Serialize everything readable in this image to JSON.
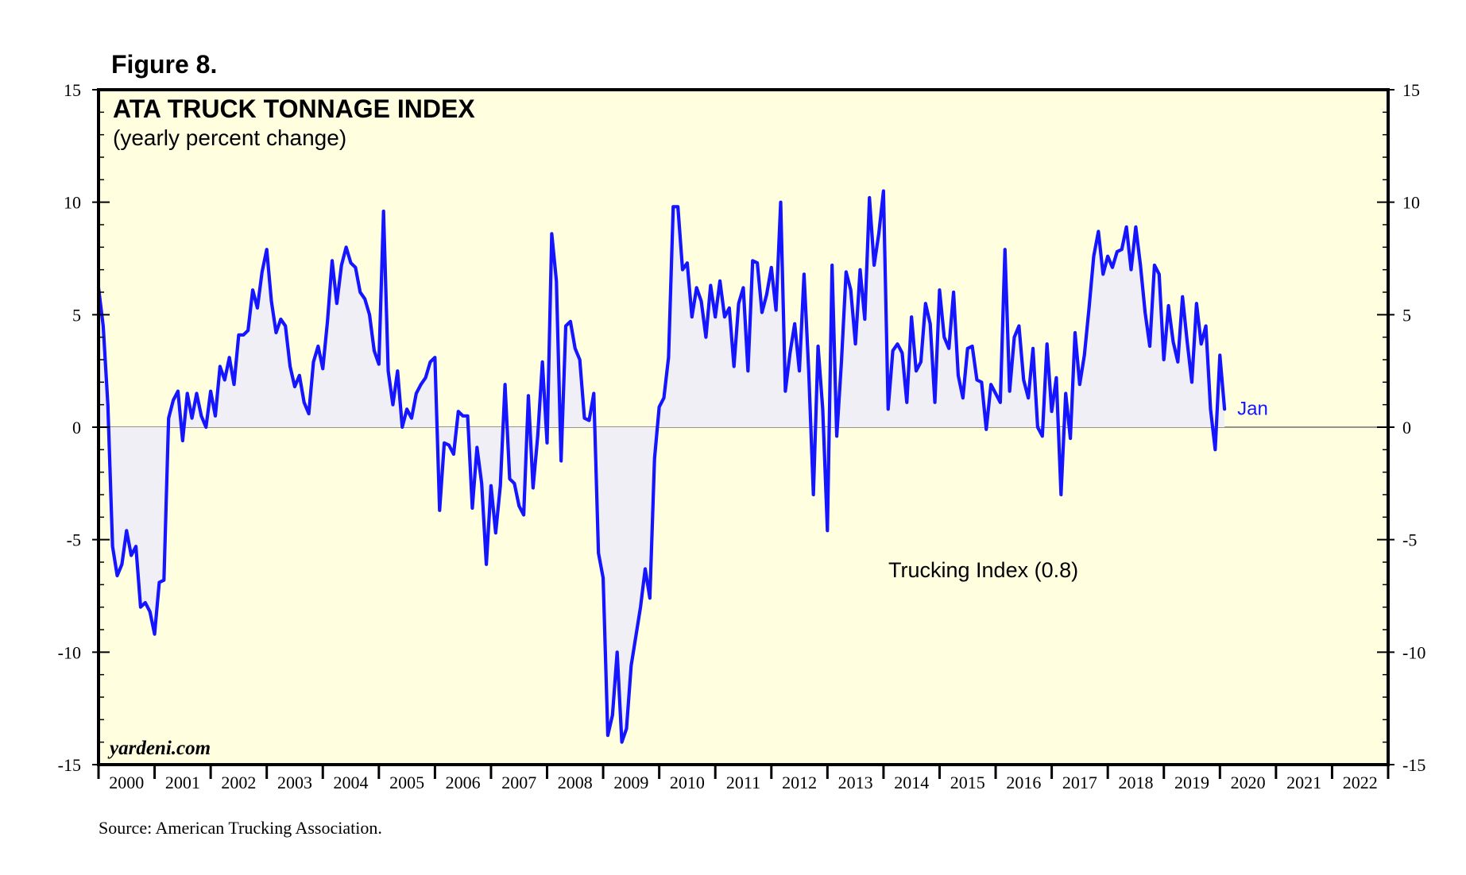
{
  "figure_label": "Figure 8.",
  "source": "Source: American Trucking Association.",
  "watermark": "yardeni.com",
  "colors": {
    "plot_bg": "#ffffe0",
    "line": "#1515ff",
    "fill": "#efeff5",
    "frame": "#000000"
  },
  "chart_data": {
    "type": "line",
    "title": "ATA TRUCK TONNAGE INDEX",
    "subtitle": "(yearly percent change)",
    "series_label": "Trucking Index (0.8)",
    "end_label": "Jan",
    "xlabel": "",
    "ylabel": "",
    "ylim": [
      -15,
      15
    ],
    "y_ticks": [
      "15",
      "10",
      "5",
      "0",
      "-5",
      "-10",
      "-15"
    ],
    "x_start": 2000.0,
    "x_end": 2023.0,
    "x_step": 0.08333,
    "x_tick_labels": [
      "2000",
      "2001",
      "2002",
      "2003",
      "2004",
      "2005",
      "2006",
      "2007",
      "2008",
      "2009",
      "2010",
      "2011",
      "2012",
      "2013",
      "2014",
      "2015",
      "2016",
      "2017",
      "2018",
      "2019",
      "2020",
      "2021",
      "2022"
    ],
    "series": [
      {
        "name": "Trucking Index",
        "values": [
          6.2,
          4.5,
          1.0,
          -5.3,
          -6.6,
          -6.1,
          -4.6,
          -5.7,
          -5.3,
          -8.0,
          -7.8,
          -8.2,
          -9.2,
          -6.9,
          -6.8,
          0.4,
          1.2,
          1.6,
          -0.6,
          1.5,
          0.4,
          1.5,
          0.5,
          0.0,
          1.6,
          0.5,
          2.7,
          2.1,
          3.1,
          1.9,
          4.1,
          4.1,
          4.3,
          6.1,
          5.3,
          6.9,
          7.9,
          5.6,
          4.2,
          4.8,
          4.5,
          2.7,
          1.8,
          2.3,
          1.1,
          0.6,
          2.9,
          3.6,
          2.6,
          4.7,
          7.4,
          5.5,
          7.2,
          8.0,
          7.3,
          7.1,
          6.0,
          5.7,
          5.0,
          3.4,
          2.8,
          9.6,
          2.5,
          1.0,
          2.5,
          0.0,
          0.8,
          0.4,
          1.5,
          1.9,
          2.2,
          2.9,
          3.1,
          -3.7,
          -0.7,
          -0.8,
          -1.2,
          0.7,
          0.5,
          0.5,
          -3.6,
          -0.9,
          -2.5,
          -6.1,
          -2.6,
          -4.7,
          -2.6,
          1.9,
          -2.3,
          -2.5,
          -3.5,
          -3.9,
          1.4,
          -2.7,
          -0.4,
          2.9,
          -0.7,
          8.6,
          6.5,
          -1.5,
          4.5,
          4.7,
          3.5,
          3.0,
          0.4,
          0.3,
          1.5,
          -5.6,
          -6.7,
          -13.7,
          -12.8,
          -10.0,
          -14.0,
          -13.4,
          -10.6,
          -9.3,
          -8.0,
          -6.3,
          -7.6,
          -1.4,
          0.9,
          1.3,
          3.1,
          9.8,
          9.8,
          7.0,
          7.3,
          4.9,
          6.2,
          5.6,
          4.0,
          6.3,
          4.9,
          6.5,
          4.9,
          5.3,
          2.7,
          5.5,
          6.2,
          2.5,
          7.4,
          7.3,
          5.1,
          5.9,
          7.1,
          5.2,
          10.0,
          1.6,
          3.3,
          4.6,
          2.5,
          6.8,
          2.5,
          -3.0,
          3.6,
          0.8,
          -4.6,
          7.2,
          -0.4,
          2.9,
          6.9,
          6.1,
          3.7,
          7.0,
          4.8,
          10.2,
          7.2,
          8.6,
          10.5,
          0.8,
          3.4,
          3.7,
          3.3,
          1.1,
          4.9,
          2.5,
          2.9,
          5.5,
          4.6,
          1.1,
          6.1,
          4.0,
          3.5,
          6.0,
          2.3,
          1.3,
          3.5,
          3.6,
          2.1,
          2.0,
          -0.1,
          1.9,
          1.5,
          1.1,
          7.9,
          1.6,
          4.0,
          4.5,
          2.1,
          1.3,
          3.5,
          0.0,
          -0.4,
          3.7,
          0.7,
          2.2,
          -3.0,
          1.5,
          -0.5,
          4.2,
          1.9,
          3.2,
          5.3,
          7.6,
          8.7,
          6.8,
          7.6,
          7.1,
          7.8,
          7.9,
          8.9,
          7.0,
          8.9,
          7.2,
          5.1,
          3.6,
          7.2,
          6.8,
          3.0,
          5.4,
          3.8,
          2.9,
          5.8,
          3.8,
          2.0,
          5.5,
          3.7,
          4.5,
          0.8,
          -1.0,
          3.2,
          0.8
        ]
      }
    ]
  }
}
